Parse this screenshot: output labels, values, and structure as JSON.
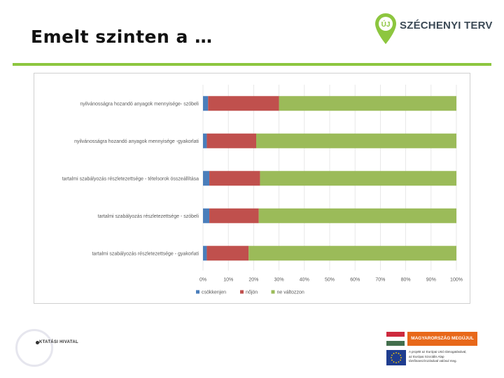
{
  "slide": {
    "title": "Emelt szinten a …"
  },
  "logos": {
    "szechenyi_text": "SZÉCHENYI TERV",
    "pin_text": "ÚJ",
    "agency_text": "KTATÁSI HIVATAL",
    "banner_text": "MAGYARORSZÁG MEGÚJUL",
    "eu_lines": [
      "A projekt az Európai Unió támogatásával,",
      "az Európai Szociális Alap",
      "társfinanszírozásával valósul meg."
    ]
  },
  "colors": {
    "accent": "#8dc63f",
    "series_blue": "#4a7ebb",
    "series_red": "#c0504d",
    "series_green": "#9bbb59"
  },
  "chart_data": {
    "type": "bar",
    "orientation": "horizontal",
    "stacked": "percent",
    "categories": [
      "nyilvánosságra hozandó anyagok mennyisége- szóbeli",
      "nyilvánosságra hozandó anyagok mennyisége -gyakorlati",
      "tartalmi szabályozás részletezettsége - tételsorok összeállítása",
      "tartalmi szabályozás részletezettsége - szóbeli",
      "tartalmi szabályozás részletezettsége - gyakorlati"
    ],
    "series": [
      {
        "name": "csökkenjen",
        "values": [
          2,
          1.5,
          2.5,
          2.5,
          1.5
        ]
      },
      {
        "name": "nőjön",
        "values": [
          28,
          19.5,
          20,
          19.5,
          16.5
        ]
      },
      {
        "name": "ne változzon",
        "values": [
          70,
          79,
          77.5,
          78,
          82
        ]
      }
    ],
    "xticks": [
      "0%",
      "10%",
      "20%",
      "30%",
      "40%",
      "50%",
      "60%",
      "70%",
      "80%",
      "90%",
      "100%"
    ],
    "xlim": [
      0,
      100
    ],
    "grid": true,
    "legend": "bottom-left"
  }
}
